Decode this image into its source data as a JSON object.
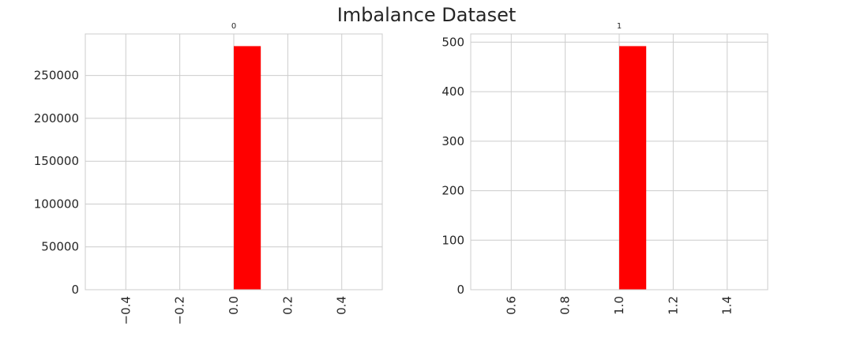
{
  "figure": {
    "suptitle": "Imbalance Dataset"
  },
  "colors": {
    "bar": "#ff0000",
    "grid": "#cccccc",
    "text": "#262626"
  },
  "chart_data": [
    {
      "type": "bar",
      "title": "0",
      "xlabel": "",
      "ylabel": "",
      "bins": [
        {
          "x0": 0.0,
          "x1": 0.1,
          "value": 284315
        }
      ],
      "xlim": [
        -0.55,
        0.55
      ],
      "ylim": [
        0,
        298531
      ],
      "xticks": [
        -0.4,
        -0.2,
        0.0,
        0.2,
        0.4
      ],
      "xtick_labels": [
        "−0.4",
        "−0.2",
        "0.0",
        "0.2",
        "0.4"
      ],
      "yticks": [
        0,
        50000,
        100000,
        150000,
        200000,
        250000
      ],
      "ytick_labels": [
        "0",
        "50000",
        "100000",
        "150000",
        "200000",
        "250000"
      ],
      "grid": true,
      "xtick_rotation": "vertical"
    },
    {
      "type": "bar",
      "title": "1",
      "xlabel": "",
      "ylabel": "",
      "bins": [
        {
          "x0": 1.0,
          "x1": 1.1,
          "value": 492
        }
      ],
      "xlim": [
        0.45,
        1.55
      ],
      "ylim": [
        0,
        516.6
      ],
      "xticks": [
        0.6,
        0.8,
        1.0,
        1.2,
        1.4
      ],
      "xtick_labels": [
        "0.6",
        "0.8",
        "1.0",
        "1.2",
        "1.4"
      ],
      "yticks": [
        0,
        100,
        200,
        300,
        400,
        500
      ],
      "ytick_labels": [
        "0",
        "100",
        "200",
        "300",
        "400",
        "500"
      ],
      "grid": true,
      "xtick_rotation": "vertical"
    }
  ]
}
